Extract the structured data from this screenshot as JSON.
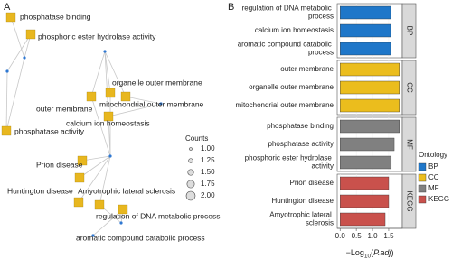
{
  "chart_data": [
    {
      "type": "network",
      "panel_label": "A",
      "size_legend_title": "Counts",
      "size_ticks": [
        {
          "value": 1,
          "label": "1.00"
        },
        {
          "value": 1.25,
          "label": "1.25"
        },
        {
          "value": 1.5,
          "label": "1.50"
        },
        {
          "value": 1.75,
          "label": "1.75"
        },
        {
          "value": 2,
          "label": "2.00"
        }
      ],
      "node_color": "#e8b71f",
      "gene_color": "#2f78d2",
      "nodes": [
        {
          "label": "phosphatase binding",
          "count": 2
        },
        {
          "label": "phosphoric ester hydrolase activity",
          "count": 2
        },
        {
          "label": "phosphatase activity",
          "count": 2
        },
        {
          "label": "outer membrane",
          "count": 2
        },
        {
          "label": "organelle outer membrane",
          "count": 2
        },
        {
          "label": "mitochondrial outer membrane",
          "count": 2
        },
        {
          "label": "calcium ion homeostasis",
          "count": 2
        },
        {
          "label": "Prion disease",
          "count": 2
        },
        {
          "label": "Amyotrophic lateral sclerosis",
          "count": 2
        },
        {
          "label": "Huntington disease",
          "count": 2
        },
        {
          "label": "regulation of DNA metabolic process",
          "count": 2
        },
        {
          "label": "aromatic compound catabolic process",
          "count": 2
        }
      ]
    },
    {
      "type": "faceted_hbar",
      "panel_label": "B",
      "legend_title": "Ontology",
      "xlim": [
        -0.09,
        1.92
      ],
      "xticks": [
        {
          "value": 0,
          "label": "0.0"
        },
        {
          "value": 0.5,
          "label": "0.5"
        },
        {
          "value": 1,
          "label": "1.0"
        },
        {
          "value": 1.5,
          "label": "1.5"
        }
      ],
      "xlabel_parts": [
        "−Log",
        "10",
        "(",
        "P.adj",
        ")"
      ],
      "facets": [
        {
          "name": "BP",
          "color": "#1f77c9",
          "categories": [
            "regulation of DNA metabolic process",
            "calcium ion homeostasis",
            "aromatic compound catabolic process"
          ],
          "values": [
            1.56,
            1.56,
            1.56
          ]
        },
        {
          "name": "CC",
          "color": "#ebbd1d",
          "categories": [
            "outer membrane",
            "organelle outer membrane",
            "mitochondrial outer membrane"
          ],
          "values": [
            1.83,
            1.83,
            1.83
          ]
        },
        {
          "name": "MF",
          "color": "#808080",
          "categories": [
            "phosphatase binding",
            "phosphatase activity",
            "phosphoric ester hydrolase activity"
          ],
          "values": [
            1.83,
            1.67,
            1.58
          ]
        },
        {
          "name": "KEGG",
          "color": "#c9514c",
          "categories": [
            "Prion disease",
            "Huntington disease",
            "Amyotrophic lateral sclerosis"
          ],
          "values": [
            1.5,
            1.5,
            1.39
          ]
        }
      ]
    }
  ]
}
